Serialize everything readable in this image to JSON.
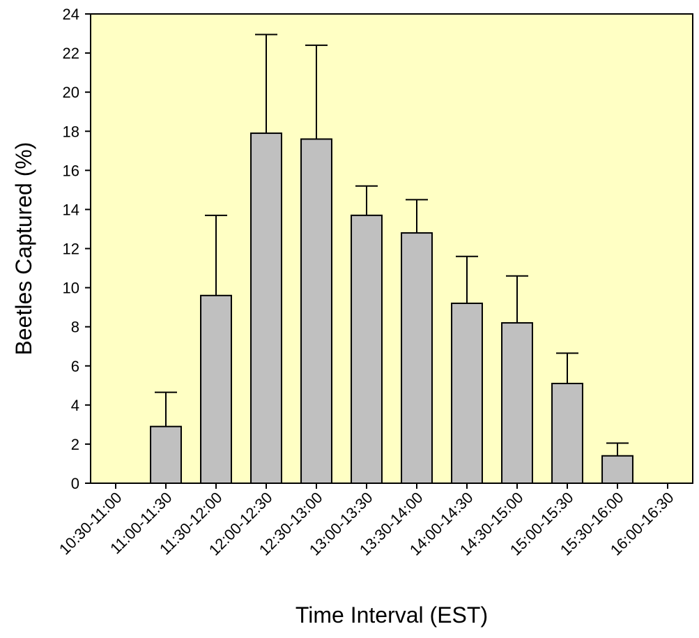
{
  "chart_data": {
    "type": "bar",
    "title": "",
    "xlabel": "Time Interval (EST)",
    "ylabel": "Beetles  Captured (%)",
    "ylim": [
      0,
      24
    ],
    "yticks": [
      0,
      2,
      4,
      6,
      8,
      10,
      12,
      14,
      16,
      18,
      20,
      22,
      24
    ],
    "grid": false,
    "legend": "none",
    "categories": [
      "10:30-11:00",
      "11:00-11:30",
      "11:30-12:00",
      "12:00-12:30",
      "12:30-13:00",
      "13:00-13:30",
      "13:30-14:00",
      "14:00-14:30",
      "14:30-15:00",
      "15:00-15:30",
      "15:30-16:00",
      "16:00-16:30"
    ],
    "values": [
      0,
      2.9,
      9.6,
      17.9,
      17.6,
      13.7,
      12.8,
      9.2,
      8.2,
      5.1,
      1.4,
      0
    ],
    "error_upper": [
      0,
      1.75,
      4.1,
      5.05,
      4.8,
      1.5,
      1.7,
      2.4,
      2.4,
      1.55,
      0.65,
      0
    ],
    "colors": {
      "plot_background": "#FFFFC4",
      "bar_fill": "#C0C0C0",
      "bar_stroke": "#000000",
      "axis": "#000000"
    }
  }
}
